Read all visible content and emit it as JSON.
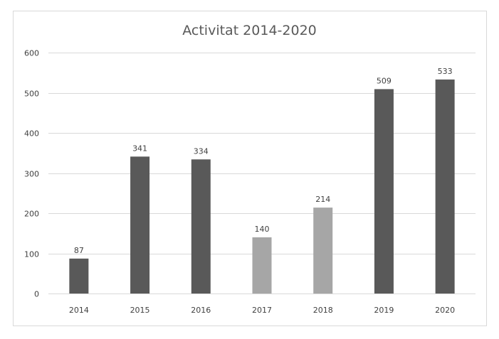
{
  "chart_data": {
    "type": "bar",
    "title": "Activitat 2014-2020",
    "xlabel": "",
    "ylabel": "",
    "categories": [
      "2014",
      "2015",
      "2016",
      "2017",
      "2018",
      "2019",
      "2020"
    ],
    "values": [
      87,
      341,
      334,
      140,
      214,
      509,
      533
    ],
    "bar_colors": [
      "#595959",
      "#595959",
      "#595959",
      "#a6a6a6",
      "#a6a6a6",
      "#595959",
      "#595959"
    ],
    "ylim": [
      0,
      600
    ],
    "yticks": [
      0,
      100,
      200,
      300,
      400,
      500,
      600
    ],
    "grid": true,
    "legend": "none",
    "gridline_color": "#d9d9d9"
  }
}
